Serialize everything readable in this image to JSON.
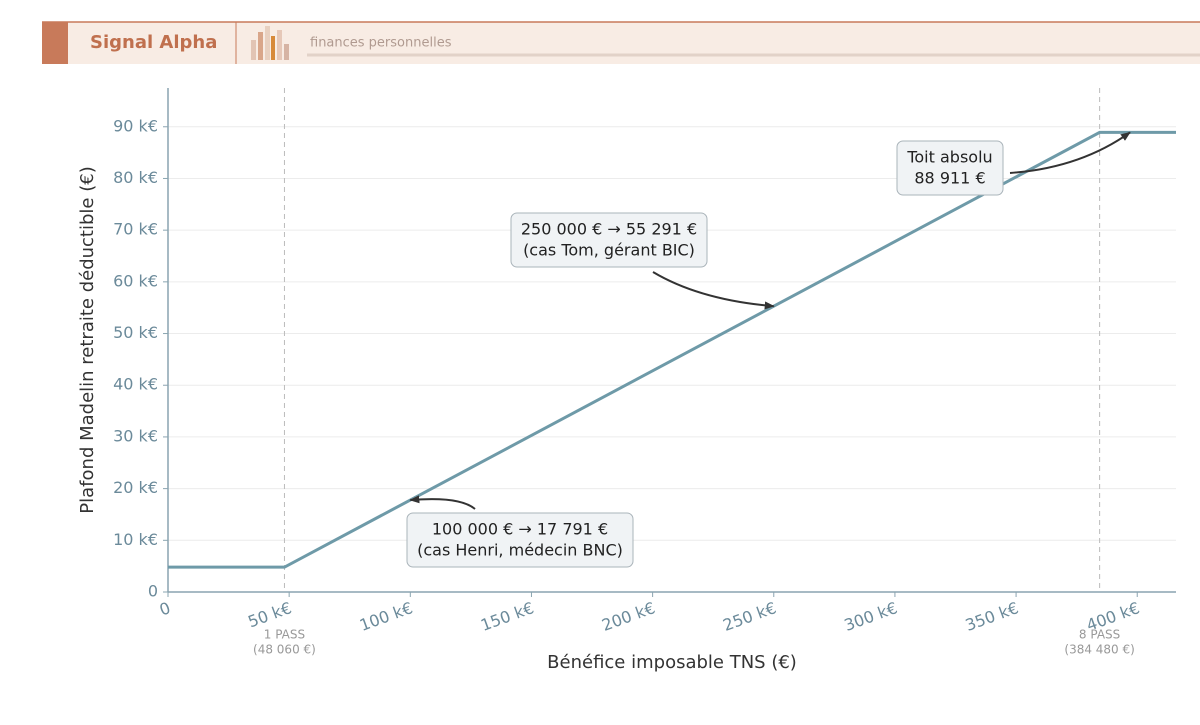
{
  "header": {
    "brand": "Signal Alpha",
    "tagline": "finances personnelles"
  },
  "chart_data": {
    "type": "line",
    "x_label": "Bénéfice imposable TNS (€)",
    "y_label": "Plafond Madelin retraite déductible (€)",
    "x": [
      0,
      48060,
      384480,
      416000
    ],
    "series": [
      {
        "name": "Plafond Madelin",
        "color": "#6e9aa8",
        "values": [
          4806,
          4806,
          88911,
          88911
        ]
      }
    ],
    "xlim": [
      0,
      416000
    ],
    "ylim": [
      0,
      97500
    ],
    "xticks": [
      0,
      {
        "value": 50000,
        "label": "50 k€"
      },
      {
        "value": 100000,
        "label": "100 k€"
      },
      {
        "value": 150000,
        "label": "150 k€"
      },
      {
        "value": 200000,
        "label": "200 k€"
      },
      {
        "value": 250000,
        "label": "250 k€"
      },
      {
        "value": 300000,
        "label": "300 k€"
      },
      {
        "value": 350000,
        "label": "350 k€"
      },
      {
        "value": 400000,
        "label": "400 k€"
      }
    ],
    "yticks": [
      0,
      {
        "value": 10000,
        "label": "10 k€"
      },
      {
        "value": 20000,
        "label": "20 k€"
      },
      {
        "value": 30000,
        "label": "30 k€"
      },
      {
        "value": 40000,
        "label": "40 k€"
      },
      {
        "value": 50000,
        "label": "50 k€"
      },
      {
        "value": 60000,
        "label": "60 k€"
      },
      {
        "value": 70000,
        "label": "70 k€"
      },
      {
        "value": 80000,
        "label": "80 k€"
      },
      {
        "value": 90000,
        "label": "90 k€"
      }
    ],
    "grid": true,
    "vlines": [
      {
        "x": 48060,
        "label": [
          "1 PASS",
          "(48 060 €)"
        ]
      },
      {
        "x": 384480,
        "label": [
          "8 PASS",
          "(384 480 €)"
        ]
      }
    ],
    "annotations": [
      {
        "text": [
          "100 000 € → 17 791 €",
          "(cas Henri, médecin BNC)"
        ],
        "xy": [
          100000,
          17791
        ]
      },
      {
        "text": [
          "250 000 € → 55 291 €",
          "(cas Tom, gérant BIC)"
        ],
        "xy": [
          250000,
          55291
        ]
      },
      {
        "text": [
          "Toit absolu",
          "88 911 €"
        ],
        "xy": [
          397000,
          88911
        ]
      }
    ]
  }
}
